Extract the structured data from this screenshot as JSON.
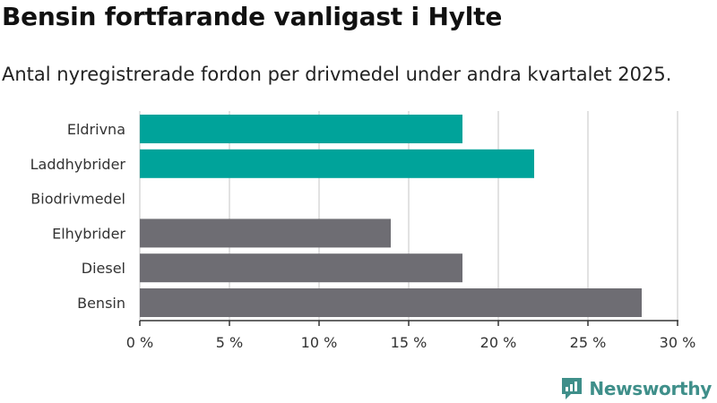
{
  "title": "Bensin fortfarande vanligast i Hylte",
  "subtitle": "Antal nyregistrerade fordon per drivmedel under andra kvartalet 2025.",
  "brand": {
    "name": "Newsworthy",
    "color": "#3f8f8a"
  },
  "colors": {
    "highlight": "#00a39a",
    "default": "#6e6d73",
    "grid": "#d9d9d9",
    "axis": "#333333"
  },
  "chart_data": {
    "type": "bar",
    "orientation": "horizontal",
    "categories": [
      "Eldrivna",
      "Laddhybrider",
      "Biodrivmedel",
      "Elhybrider",
      "Diesel",
      "Bensin"
    ],
    "values": [
      18,
      22,
      0,
      14,
      18,
      28
    ],
    "highlighted": [
      true,
      true,
      false,
      false,
      false,
      false
    ],
    "xlim": [
      0,
      30
    ],
    "xticks": [
      0,
      5,
      10,
      15,
      20,
      25,
      30
    ],
    "tick_suffix": " %",
    "grid": true
  }
}
